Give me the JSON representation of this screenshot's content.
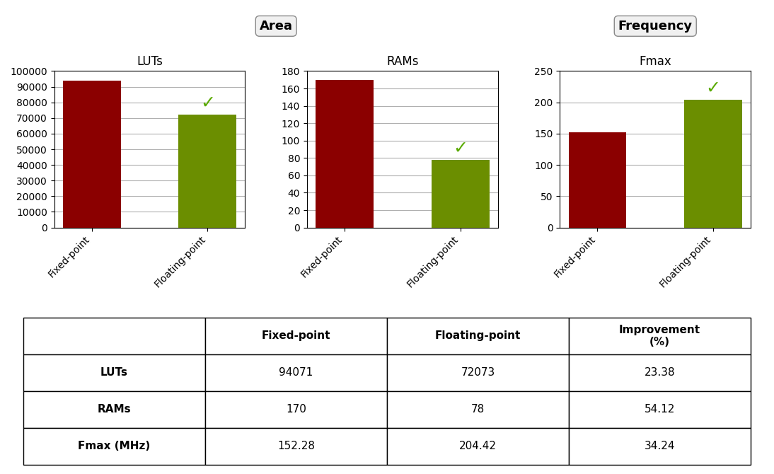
{
  "chart_data": [
    {
      "type": "bar",
      "title": "LUTs",
      "group_label": "Area",
      "categories": [
        "Fixed-point",
        "Floating-point"
      ],
      "values": [
        94071,
        72073
      ],
      "colors": [
        "#8b0000",
        "#6b8e00"
      ],
      "ylim": [
        0,
        100000
      ],
      "yticks": [
        0,
        10000,
        20000,
        30000,
        40000,
        50000,
        60000,
        70000,
        80000,
        90000,
        100000
      ],
      "grid": true,
      "annotations": [
        {
          "category": "Floating-point",
          "text": "✓",
          "color": "#5aaa00"
        }
      ]
    },
    {
      "type": "bar",
      "title": "RAMs",
      "group_label": "Area",
      "categories": [
        "Fixed-point",
        "Floating-point"
      ],
      "values": [
        170,
        78
      ],
      "colors": [
        "#8b0000",
        "#6b8e00"
      ],
      "ylim": [
        0,
        180
      ],
      "yticks": [
        0,
        20,
        40,
        60,
        80,
        100,
        120,
        140,
        160,
        180
      ],
      "grid": true,
      "annotations": [
        {
          "category": "Floating-point",
          "text": "✓",
          "color": "#5aaa00"
        }
      ]
    },
    {
      "type": "bar",
      "title": "Fmax",
      "group_label": "Frequency",
      "categories": [
        "Fixed-point",
        "Floating-point"
      ],
      "values": [
        152.28,
        204.42
      ],
      "colors": [
        "#8b0000",
        "#6b8e00"
      ],
      "ylim": [
        0,
        250
      ],
      "yticks": [
        0,
        50,
        100,
        150,
        200,
        250
      ],
      "grid": true,
      "annotations": [
        {
          "category": "Floating-point",
          "text": "✓",
          "color": "#5aaa00"
        }
      ]
    },
    {
      "type": "table",
      "columns": [
        null,
        "Fixed-point",
        "Floating-point",
        "Improvement\n(%)"
      ],
      "rows": [
        [
          "LUTs",
          "94071",
          "72073",
          "23.38"
        ],
        [
          "RAMs",
          "170",
          "78",
          "54.12"
        ],
        [
          "Fmax (MHz)",
          "152.28",
          "204.42",
          "34.24"
        ]
      ]
    }
  ]
}
